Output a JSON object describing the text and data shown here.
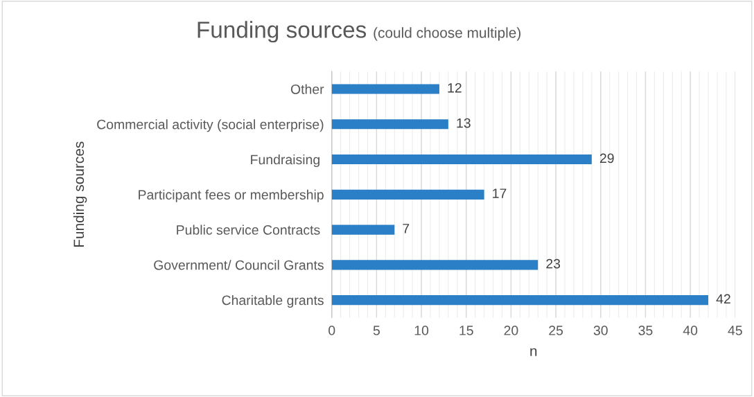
{
  "chart_data": {
    "type": "bar",
    "orientation": "horizontal",
    "title": "Funding sources",
    "subtitle": "(could choose multiple)",
    "xlabel": "n",
    "ylabel": "Funding sources",
    "categories": [
      "Other",
      "Commercial activity (social enterprise)",
      "Fundraising ",
      "Participant fees or membership",
      "Public service Contracts ",
      "Government/ Council Grants",
      "Charitable grants"
    ],
    "values": [
      12,
      13,
      29,
      17,
      7,
      23,
      42
    ],
    "color": "#2a7fc6",
    "data_labels": true,
    "grid": "x",
    "legend": false,
    "xlim": [
      0,
      45
    ],
    "xticks": [
      0,
      5,
      10,
      15,
      20,
      25,
      30,
      35,
      40,
      45
    ]
  }
}
